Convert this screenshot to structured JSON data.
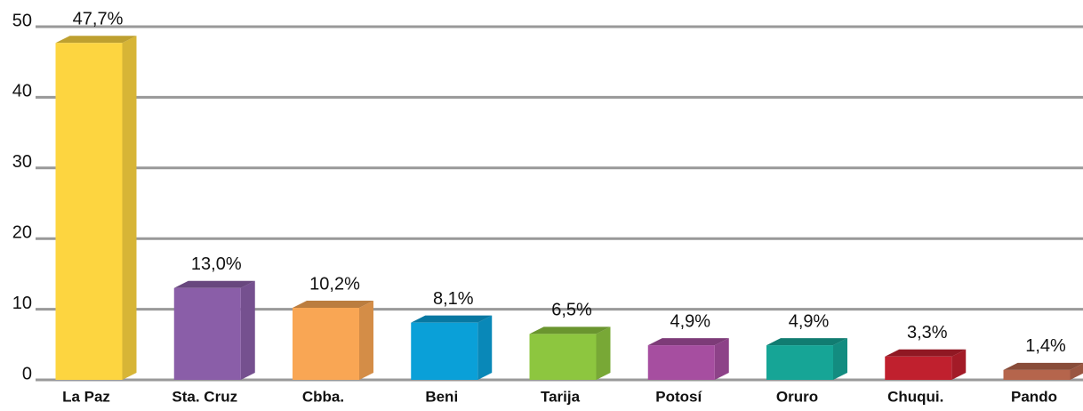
{
  "chart_data": {
    "type": "bar3d",
    "categories": [
      "La Paz",
      "Sta. Cruz",
      "Cbba.",
      "Beni",
      "Tarija",
      "Potosí",
      "Oruro",
      "Chuqui.",
      "Pando"
    ],
    "values": [
      47.7,
      13.0,
      10.2,
      8.1,
      6.5,
      4.9,
      4.9,
      3.3,
      1.4
    ],
    "value_labels": [
      "47,7%",
      "13,0%",
      "10,2%",
      "8,1%",
      "6,5%",
      "4,9%",
      "4,9%",
      "3,3%",
      "1,4%"
    ],
    "colors": [
      "#fdd540",
      "#8a5ea8",
      "#f9a654",
      "#0aa0d8",
      "#8dc63f",
      "#a64ea0",
      "#16a596",
      "#c0202e",
      "#b5654c"
    ],
    "ylim": [
      0,
      50
    ],
    "yticks": [
      0,
      10,
      20,
      30,
      40,
      50
    ],
    "grid": true
  }
}
